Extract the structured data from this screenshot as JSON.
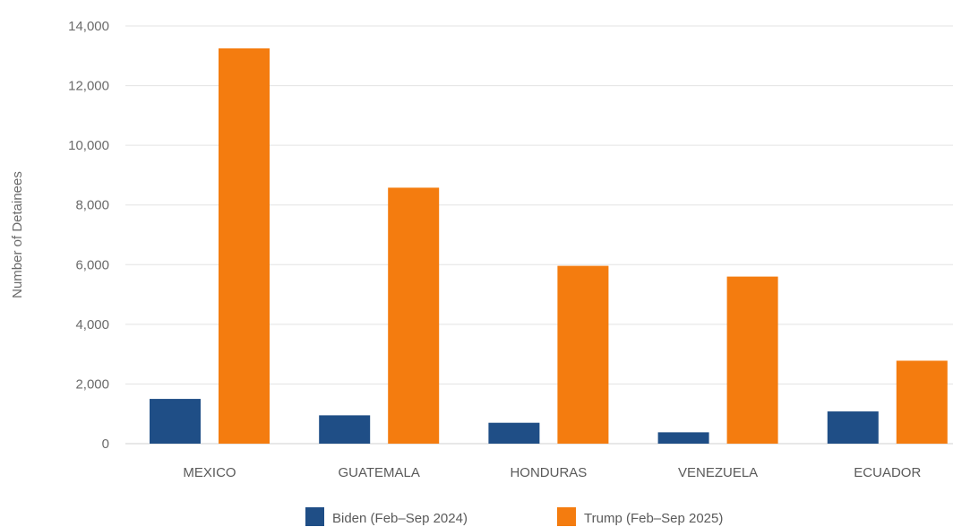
{
  "chart_data": {
    "type": "bar",
    "categories": [
      "MEXICO",
      "GUATEMALA",
      "HONDURAS",
      "VENEZUELA",
      "ECUADOR"
    ],
    "series": [
      {
        "name": "Biden (Feb–Sep 2024)",
        "color": "#1f4e86",
        "values": [
          1500,
          950,
          700,
          380,
          1080
        ]
      },
      {
        "name": "Trump (Feb–Sep 2025)",
        "color": "#f47c0f",
        "values": [
          13250,
          8580,
          5960,
          5600,
          2780
        ]
      }
    ],
    "yticks": [
      "0",
      "2,000",
      "4,000",
      "6,000",
      "8,000",
      "10,000",
      "12,000",
      "14,000"
    ],
    "ytick_values": [
      0,
      2000,
      4000,
      6000,
      8000,
      10000,
      12000,
      14000
    ],
    "ylabel": "Number of Detainees",
    "xlabel": "",
    "title": "",
    "ylim": [
      0,
      14000
    ],
    "grid": true,
    "legend": "bottom-center"
  }
}
